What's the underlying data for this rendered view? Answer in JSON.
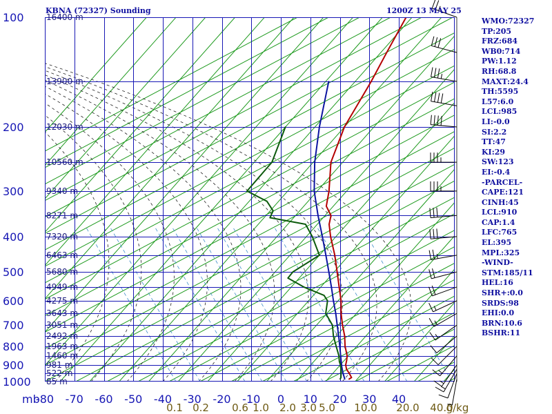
{
  "header": {
    "station": "KBNA (72327) Sounding",
    "time": "1200Z 13 MAY 25"
  },
  "colors": {
    "frame": "#1616b4",
    "temperature": "#b40000",
    "dewpoint": "#0c5a0c",
    "parcel": "#0c14a0",
    "dry_adiabat": "#1e9a1e",
    "isotherm": "#1e9a1e",
    "moist_adiabat": "#222222",
    "mixing_ratio": "#3c8cc8",
    "mix_label": "#6e5a14",
    "text": "#1010a0",
    "wind": "#000000"
  },
  "chart_data": {
    "type": "skew-t",
    "title": "KBNA (72327) Sounding",
    "subtitle": "1200Z 13 MAY 25",
    "xlabel": "",
    "ylabel": "mb",
    "xlim": [
      -80,
      40
    ],
    "ylim": [
      1000,
      100
    ],
    "y_log_scale": true,
    "grid": true,
    "pressure_ticks": [
      "100",
      "200",
      "300",
      "400",
      "500",
      "600",
      "700",
      "800",
      "900",
      "1000"
    ],
    "temperature_ticks": [
      "-80",
      "-70",
      "-60",
      "-50",
      "-40",
      "-30",
      "-20",
      "-10",
      "0",
      "10",
      "20",
      "30",
      "40"
    ],
    "mixing_ratio_labels": [
      "0.1",
      "0.2",
      "0.6",
      "1.0",
      "2.0",
      "3.0",
      "5.0",
      "10.0",
      "20.0",
      "40.0",
      "g/kg"
    ],
    "height_labels": [
      {
        "p": 100,
        "label": "16400 m"
      },
      {
        "p": 150,
        "label": "13900 m"
      },
      {
        "p": 200,
        "label": "12030 m"
      },
      {
        "p": 250,
        "label": "10560 m"
      },
      {
        "p": 300,
        "label": "9340 m"
      },
      {
        "p": 350,
        "label": "8271 m"
      },
      {
        "p": 400,
        "label": "7320 m"
      },
      {
        "p": 450,
        "label": "6463 m"
      },
      {
        "p": 500,
        "label": "5680 m"
      },
      {
        "p": 550,
        "label": "4949 m"
      },
      {
        "p": 600,
        "label": "4275 m"
      },
      {
        "p": 650,
        "label": "3643 m"
      },
      {
        "p": 700,
        "label": "3051 m"
      },
      {
        "p": 750,
        "label": "2492 m"
      },
      {
        "p": 800,
        "label": "1963 m"
      },
      {
        "p": 850,
        "label": "1460 m"
      },
      {
        "p": 900,
        "label": "981 m"
      },
      {
        "p": 950,
        "label": "522 m"
      },
      {
        "p": 1000,
        "label": "85 m"
      }
    ],
    "series": [
      {
        "name": "temperature",
        "points": [
          [
            985,
            17.2
          ],
          [
            975,
            17.6
          ],
          [
            950,
            15.6
          ],
          [
            925,
            13.4
          ],
          [
            900,
            11.8
          ],
          [
            875,
            10.8
          ],
          [
            850,
            9.6
          ],
          [
            800,
            6.0
          ],
          [
            750,
            2.8
          ],
          [
            700,
            -1.2
          ],
          [
            650,
            -5.2
          ],
          [
            600,
            -9.0
          ],
          [
            550,
            -13.8
          ],
          [
            500,
            -19.0
          ],
          [
            450,
            -24.8
          ],
          [
            400,
            -31.8
          ],
          [
            370,
            -36.0
          ],
          [
            350,
            -38.0
          ],
          [
            330,
            -42.4
          ],
          [
            300,
            -46.0
          ],
          [
            250,
            -54.0
          ],
          [
            200,
            -60.0
          ],
          [
            150,
            -64.6
          ],
          [
            125,
            -68.0
          ],
          [
            100,
            -72.0
          ]
        ]
      },
      {
        "name": "dewpoint",
        "points": [
          [
            985,
            14.2
          ],
          [
            975,
            14.0
          ],
          [
            950,
            12.8
          ],
          [
            925,
            11.5
          ],
          [
            900,
            10.0
          ],
          [
            880,
            8.6
          ],
          [
            850,
            6.8
          ],
          [
            800,
            3.0
          ],
          [
            750,
            -1.0
          ],
          [
            700,
            -4.6
          ],
          [
            650,
            -10.4
          ],
          [
            600,
            -13.6
          ],
          [
            580,
            -16.4
          ],
          [
            550,
            -25.8
          ],
          [
            520,
            -33.8
          ],
          [
            500,
            -34.0
          ],
          [
            450,
            -30.0
          ],
          [
            400,
            -38.0
          ],
          [
            370,
            -44.0
          ],
          [
            355,
            -58.0
          ],
          [
            340,
            -59.0
          ],
          [
            320,
            -64.0
          ],
          [
            300,
            -73.8
          ],
          [
            250,
            -74.0
          ],
          [
            200,
            -80.0
          ]
        ]
      },
      {
        "name": "parcel",
        "points": [
          [
            985,
            15.8
          ],
          [
            950,
            13.5
          ],
          [
            910,
            11.0
          ],
          [
            850,
            7.4
          ],
          [
            800,
            4.2
          ],
          [
            750,
            0.8
          ],
          [
            700,
            -3.0
          ],
          [
            650,
            -7.0
          ],
          [
            600,
            -11.6
          ],
          [
            550,
            -16.4
          ],
          [
            500,
            -21.8
          ],
          [
            450,
            -27.8
          ],
          [
            400,
            -34.6
          ],
          [
            350,
            -42.4
          ],
          [
            300,
            -51.0
          ],
          [
            250,
            -59.5
          ],
          [
            200,
            -68.5
          ],
          [
            150,
            -79.0
          ]
        ]
      }
    ],
    "winds": [
      {
        "p": 985,
        "dir": 190,
        "spd": 5
      },
      {
        "p": 950,
        "dir": 200,
        "spd": 10
      },
      {
        "p": 925,
        "dir": 210,
        "spd": 15
      },
      {
        "p": 900,
        "dir": 215,
        "spd": 15
      },
      {
        "p": 850,
        "dir": 220,
        "spd": 15
      },
      {
        "p": 800,
        "dir": 225,
        "spd": 10
      },
      {
        "p": 750,
        "dir": 230,
        "spd": 10
      },
      {
        "p": 700,
        "dir": 235,
        "spd": 15
      },
      {
        "p": 650,
        "dir": 240,
        "spd": 15
      },
      {
        "p": 600,
        "dir": 245,
        "spd": 15
      },
      {
        "p": 550,
        "dir": 250,
        "spd": 20
      },
      {
        "p": 500,
        "dir": 255,
        "spd": 20
      },
      {
        "p": 450,
        "dir": 260,
        "spd": 25
      },
      {
        "p": 400,
        "dir": 265,
        "spd": 30
      },
      {
        "p": 350,
        "dir": 265,
        "spd": 30
      },
      {
        "p": 300,
        "dir": 270,
        "spd": 35
      },
      {
        "p": 250,
        "dir": 270,
        "spd": 35
      },
      {
        "p": 200,
        "dir": 275,
        "spd": 40
      },
      {
        "p": 175,
        "dir": 280,
        "spd": 40
      },
      {
        "p": 150,
        "dir": 280,
        "spd": 35
      },
      {
        "p": 125,
        "dir": 285,
        "spd": 30
      },
      {
        "p": 100,
        "dir": 290,
        "spd": 25
      }
    ]
  },
  "indices": [
    "WMO:72327",
    "TP:205",
    "FRZ:684",
    "WB0:714",
    "PW:1.12",
    "RH:68.8",
    "MAXT:24.4",
    "TH:5595",
    "L57:6.0",
    "LCL:985",
    "LI:-0.0",
    "SI:2.2",
    "TT:47",
    "KI:29",
    "SW:123",
    "EI:-0.4",
    "-PARCEL-",
    "CAPE:121",
    "CINH:45",
    "LCL:910",
    "CAP:1.4",
    "LFC:765",
    "EL:395",
    "MPL:325",
    "-WIND-",
    "STM:185/11",
    "HEL:16",
    "SHR+:0.0",
    "SRDS:98",
    "EHI:0.0",
    "BRN:10.6",
    "BSHR:11"
  ]
}
